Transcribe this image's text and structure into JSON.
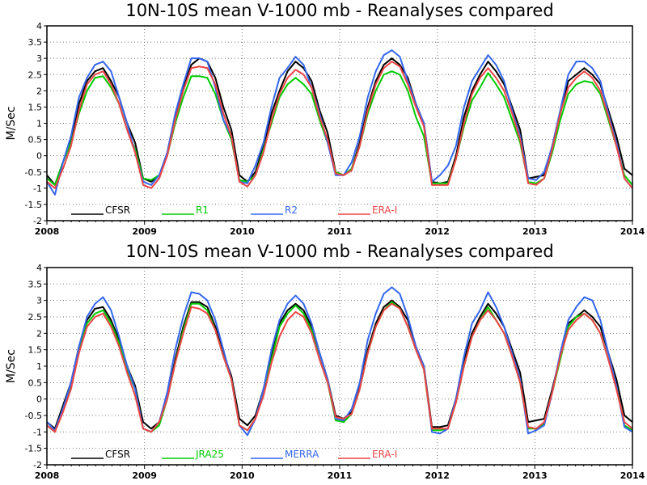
{
  "chart_data": [
    {
      "type": "line",
      "title": "10N-10S mean V-1000 mb - Reanalyses compared",
      "ylabel": "M/Sec",
      "xlabel": "",
      "xlim": [
        2008,
        2014
      ],
      "ylim": [
        -2,
        4
      ],
      "yticks": [
        "-2",
        "-1.5",
        "-1",
        "-0.5",
        "0",
        "0.5",
        "1",
        "1.5",
        "2",
        "2.5",
        "3",
        "3.5",
        "4"
      ],
      "xticks": [
        "2008",
        "2009",
        "2010",
        "2011",
        "2012",
        "2013",
        "2014"
      ],
      "grid": true,
      "legend_position": "bottom-inside",
      "series": [
        {
          "name": "CFSR",
          "color": "#000000",
          "values": [
            -0.6,
            -0.9,
            -0.2,
            0.5,
            1.6,
            2.3,
            2.6,
            2.7,
            2.3,
            1.8,
            1.0,
            0.4,
            -0.7,
            -0.8,
            -0.6,
            0.0,
            1.2,
            2.1,
            2.8,
            3.0,
            2.9,
            2.4,
            1.5,
            0.8,
            -0.6,
            -0.8,
            -0.5,
            0.3,
            1.3,
            2.0,
            2.6,
            2.9,
            2.7,
            2.3,
            1.4,
            0.7,
            -0.5,
            -0.6,
            -0.4,
            0.4,
            1.5,
            2.3,
            2.8,
            3.0,
            2.8,
            2.4,
            1.6,
            1.0,
            -0.8,
            -0.85,
            -0.8,
            0.0,
            1.2,
            2.0,
            2.5,
            2.9,
            2.6,
            2.2,
            1.5,
            0.8,
            -0.7,
            -0.65,
            -0.6,
            0.3,
            1.3,
            2.3,
            2.5,
            2.7,
            2.5,
            2.2,
            1.4,
            0.6,
            -0.4,
            -0.6
          ]
        },
        {
          "name": "R1",
          "color": "#00cc00",
          "values": [
            -0.7,
            -0.9,
            -0.2,
            0.4,
            1.3,
            2.0,
            2.4,
            2.45,
            2.1,
            1.6,
            0.8,
            0.2,
            -0.7,
            -0.75,
            -0.6,
            0.0,
            1.0,
            1.8,
            2.45,
            2.45,
            2.4,
            1.9,
            1.1,
            0.5,
            -0.75,
            -0.8,
            -0.6,
            0.2,
            1.0,
            1.8,
            2.2,
            2.4,
            2.2,
            1.9,
            1.1,
            0.4,
            -0.5,
            -0.6,
            -0.4,
            0.3,
            1.3,
            2.0,
            2.5,
            2.6,
            2.5,
            2.0,
            1.2,
            0.6,
            -0.85,
            -0.85,
            -0.85,
            -0.1,
            0.9,
            1.7,
            2.1,
            2.55,
            2.2,
            1.8,
            1.1,
            0.4,
            -0.8,
            -0.85,
            -0.7,
            0.1,
            1.1,
            1.9,
            2.2,
            2.3,
            2.25,
            1.9,
            1.1,
            0.3,
            -0.6,
            -0.9
          ]
        },
        {
          "name": "R2",
          "color": "#3366ee",
          "values": [
            -0.8,
            -1.2,
            -0.2,
            0.6,
            1.8,
            2.4,
            2.8,
            2.9,
            2.6,
            1.8,
            1.0,
            0.1,
            -0.8,
            -0.9,
            -0.6,
            0.1,
            1.3,
            2.2,
            3.0,
            3.0,
            2.9,
            2.1,
            1.1,
            0.6,
            -0.8,
            -0.85,
            -0.3,
            0.4,
            1.5,
            2.4,
            2.7,
            3.05,
            2.8,
            2.1,
            1.3,
            0.4,
            -0.6,
            -0.6,
            -0.2,
            0.6,
            1.8,
            2.6,
            3.1,
            3.25,
            3.05,
            2.3,
            1.6,
            1.0,
            -0.8,
            -0.6,
            -0.3,
            0.3,
            1.5,
            2.3,
            2.7,
            3.1,
            2.8,
            2.3,
            1.4,
            0.6,
            -0.7,
            -0.75,
            -0.5,
            0.3,
            1.4,
            2.5,
            2.9,
            2.9,
            2.7,
            2.3,
            1.3,
            0.4,
            -0.7,
            -1.0
          ]
        },
        {
          "name": "ERA-I",
          "color": "#ee4444",
          "values": [
            -0.8,
            -1.0,
            -0.4,
            0.3,
            1.4,
            2.2,
            2.5,
            2.6,
            2.2,
            1.6,
            0.8,
            0.1,
            -0.9,
            -1.0,
            -0.7,
            0.0,
            1.1,
            2.0,
            2.7,
            2.75,
            2.7,
            2.2,
            1.3,
            0.6,
            -0.8,
            -0.95,
            -0.6,
            0.1,
            1.1,
            1.9,
            2.4,
            2.65,
            2.5,
            2.1,
            1.2,
            0.5,
            -0.55,
            -0.6,
            -0.45,
            0.3,
            1.4,
            2.2,
            2.7,
            2.9,
            2.75,
            2.2,
            1.5,
            0.9,
            -0.9,
            -0.9,
            -0.9,
            -0.1,
            1.0,
            1.9,
            2.4,
            2.7,
            2.4,
            2.0,
            1.3,
            0.5,
            -0.85,
            -0.9,
            -0.7,
            0.2,
            1.3,
            2.1,
            2.4,
            2.6,
            2.4,
            2.0,
            1.2,
            0.3,
            -0.7,
            -1.0
          ]
        }
      ]
    },
    {
      "type": "line",
      "title": "10N-10S mean V-1000 mb - Reanalyses compared",
      "ylabel": "M/Sec",
      "xlabel": "",
      "xlim": [
        2008,
        2014
      ],
      "ylim": [
        -2,
        4
      ],
      "yticks": [
        "-2",
        "-1.5",
        "-1",
        "-0.5",
        "0",
        "0.5",
        "1",
        "1.5",
        "2",
        "2.5",
        "3",
        "3.5",
        "4"
      ],
      "xticks": [
        "2008",
        "2009",
        "2010",
        "2011",
        "2012",
        "2013",
        "2014"
      ],
      "grid": true,
      "legend_position": "bottom-inside",
      "series": [
        {
          "name": "CFSR",
          "color": "#000000",
          "values": [
            -0.7,
            -0.9,
            -0.2,
            0.5,
            1.6,
            2.4,
            2.75,
            2.8,
            2.4,
            1.8,
            1.0,
            0.4,
            -0.7,
            -0.9,
            -0.7,
            0.0,
            1.2,
            2.2,
            2.95,
            2.95,
            2.8,
            2.2,
            1.4,
            0.7,
            -0.6,
            -0.8,
            -0.5,
            0.3,
            1.3,
            2.3,
            2.7,
            2.9,
            2.7,
            2.2,
            1.4,
            0.6,
            -0.5,
            -0.6,
            -0.4,
            0.4,
            1.5,
            2.3,
            2.8,
            3.0,
            2.8,
            2.4,
            1.6,
            1.0,
            -0.85,
            -0.85,
            -0.8,
            0.0,
            1.2,
            2.0,
            2.5,
            2.9,
            2.6,
            2.2,
            1.5,
            0.8,
            -0.7,
            -0.65,
            -0.6,
            0.3,
            1.3,
            2.3,
            2.5,
            2.7,
            2.5,
            2.2,
            1.4,
            0.6,
            -0.5,
            -0.7
          ]
        },
        {
          "name": "JRA25",
          "color": "#00cc00",
          "values": [
            -0.8,
            -1.0,
            -0.3,
            0.4,
            1.5,
            2.3,
            2.6,
            2.7,
            2.3,
            1.7,
            0.9,
            0.3,
            -0.9,
            -1.0,
            -0.8,
            0.0,
            1.1,
            2.1,
            2.9,
            2.9,
            2.7,
            2.1,
            1.3,
            0.6,
            -0.8,
            -0.95,
            -0.6,
            0.2,
            1.2,
            2.2,
            2.6,
            2.85,
            2.6,
            2.1,
            1.2,
            0.5,
            -0.65,
            -0.7,
            -0.45,
            0.3,
            1.4,
            2.2,
            2.7,
            2.95,
            2.75,
            2.2,
            1.5,
            0.9,
            -0.95,
            -0.95,
            -0.9,
            -0.1,
            1.0,
            1.9,
            2.4,
            2.8,
            2.4,
            2.0,
            1.3,
            0.5,
            -0.9,
            -0.9,
            -0.75,
            0.2,
            1.2,
            2.2,
            2.5,
            2.6,
            2.4,
            2.0,
            1.2,
            0.4,
            -0.8,
            -0.95
          ]
        },
        {
          "name": "MERRA",
          "color": "#3366ee",
          "values": [
            -0.7,
            -0.95,
            -0.3,
            0.5,
            1.6,
            2.5,
            2.9,
            3.1,
            2.7,
            1.9,
            1.0,
            0.3,
            -0.9,
            -1.0,
            -0.7,
            0.2,
            1.5,
            2.5,
            3.25,
            3.2,
            3.0,
            2.4,
            1.5,
            0.6,
            -0.8,
            -1.1,
            -0.6,
            0.3,
            1.5,
            2.4,
            2.9,
            3.15,
            2.9,
            2.3,
            1.4,
            0.6,
            -0.6,
            -0.65,
            -0.3,
            0.5,
            1.8,
            2.6,
            3.2,
            3.4,
            3.2,
            2.5,
            1.6,
            1.0,
            -1.0,
            -1.05,
            -0.9,
            0.0,
            1.3,
            2.3,
            2.7,
            3.25,
            2.8,
            2.2,
            1.4,
            0.6,
            -1.05,
            -0.95,
            -0.8,
            0.2,
            1.4,
            2.4,
            2.8,
            3.1,
            3.0,
            2.4,
            1.4,
            0.4,
            -0.85,
            -1.0
          ]
        },
        {
          "name": "ERA-I",
          "color": "#ee4444",
          "values": [
            -0.8,
            -1.0,
            -0.4,
            0.3,
            1.4,
            2.2,
            2.5,
            2.6,
            2.2,
            1.6,
            0.8,
            0.1,
            -0.9,
            -1.0,
            -0.7,
            0.0,
            1.1,
            2.0,
            2.8,
            2.75,
            2.6,
            2.1,
            1.3,
            0.6,
            -0.8,
            -0.95,
            -0.6,
            0.1,
            1.1,
            1.9,
            2.4,
            2.65,
            2.5,
            2.0,
            1.2,
            0.5,
            -0.55,
            -0.6,
            -0.45,
            0.3,
            1.4,
            2.2,
            2.7,
            2.9,
            2.75,
            2.2,
            1.5,
            0.9,
            -0.9,
            -0.9,
            -0.9,
            -0.1,
            1.0,
            1.9,
            2.4,
            2.7,
            2.4,
            2.0,
            1.3,
            0.5,
            -0.85,
            -0.9,
            -0.7,
            0.2,
            1.3,
            2.1,
            2.4,
            2.6,
            2.4,
            2.0,
            1.2,
            0.3,
            -0.7,
            -0.9
          ]
        }
      ]
    }
  ]
}
